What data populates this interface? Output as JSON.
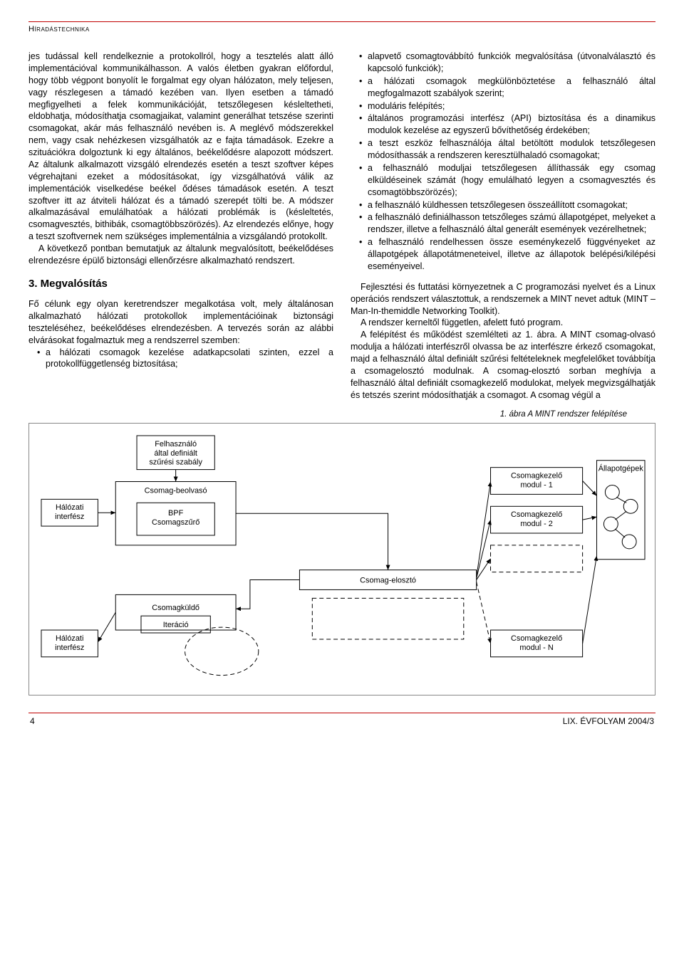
{
  "header": {
    "section": "Híradástechnika"
  },
  "left": {
    "p1": "jes tudással kell rendelkeznie a protokollról, hogy a tesztelés alatt álló implementációval kommunikálhasson. A valós életben gyakran előfordul, hogy több végpont bonyolít le forgalmat egy olyan hálózaton, mely teljesen, vagy részlegesen a támadó kezében van. Ilyen esetben a támadó megfigyelheti a felek kommunikációját, tetszőlegesen késleltetheti, eldobhatja, módosíthatja csomagjaikat, valamint generálhat tetszése szerinti csomagokat, akár más felhasználó nevében is. A meglévő módszerekkel nem, vagy csak nehézkesen vizsgálhatók az e fajta támadások. Ezekre a szituációkra dolgoztunk ki egy általános, beékelődésre alapozott módszert. Az általunk alkalmazott vizsgáló elrendezés esetén a teszt szoftver képes végrehajtani ezeket a módosításokat, így vizsgálhatóvá válik az implementációk viselkedése beékel ődéses támadások esetén. A teszt szoftver itt az átviteli hálózat és a támadó szerepét tölti be. A módszer alkalmazásával emulálhatóak a hálózati problémák is (késleltetés, csomagvesztés, bithibák, csomagtöbbszörözés). Az elrendezés előnye, hogy a teszt szoftvernek nem szükséges implementálnia a vizsgálandó protokollt.",
    "p2": "A következő pontban bemutatjuk az általunk megvalósított, beékelődéses elrendezésre épülő biztonsági ellenőrzésre alkalmazható rendszert.",
    "h1": "3. Megvalósítás",
    "p3": "Fő célunk egy olyan keretrendszer megalkotása volt, mely általánosan alkalmazható hálózati protokollok implementációinak biztonsági teszteléséhez, beékelődéses elrendezésben. A tervezés során az alábbi elvárásokat fogalmaztuk meg a rendszerrel szemben:",
    "li1": "a hálózati csomagok kezelése adatkapcsolati szinten, ezzel a protokollfüggetlenség biztosítása;"
  },
  "right": {
    "bullets": [
      "alapvető csomagtovábbító funkciók megvalósítása (útvonalválasztó és kapcsoló funkciók);",
      "a hálózati csomagok megkülönböztetése a felhasználó által megfogalmazott szabályok szerint;",
      "moduláris felépítés;",
      "általános programozási interfész (API) biztosítása és a dinamikus modulok kezelése az egyszerű bővíthetőség érdekében;",
      "a teszt eszköz felhasználója által betöltött modulok tetszőlegesen módosíthassák a rendszeren keresztülhaladó csomagokat;",
      "a felhasználó moduljai tetszőlegesen állíthassák egy csomag elküldéseinek számát (hogy emulálható legyen a csomagvesztés és csomagtöbbszörözés);",
      "a felhasználó küldhessen tetszőlegesen összeállított csomagokat;",
      "a felhasználó definiálhasson tetszőleges számú állapotgépet, melyeket a rendszer, illetve a felhasználó által generált események vezérelhetnek;",
      "a felhasználó rendelhessen össze eseménykezelő függvényeket az állapotgépek állapotátmeneteivel, illetve az állapotok belépési/kilépési eseményeivel."
    ],
    "p1": "Fejlesztési és futtatási környezetnek a C programozási nyelvet és a Linux operációs rendszert választottuk, a rendszernek a MINT nevet adtuk (MINT – Man-In-themiddle Networking Toolkit).",
    "p2": "A rendszer kerneltől független, afelett futó program.",
    "p3": "A felépítést és működést szemlélteti az 1. ábra. A MINT csomag-olvasó modulja a hálózati interfészről olvassa be az interfészre érkező csomagokat, majd a felhasználó által definiált szűrési feltételeknek megfelelőket továbbítja a csomagelosztó modulnak. A csomag-elosztó sorban meghívja a felhasználó által definiált csomagkezelő modulokat, melyek megvizsgálhatják és tetszés szerint módosíthatják a csomagot. A csomag végül a"
  },
  "figure": {
    "caption": "1. ábra  A MINT rendszer felépítése",
    "nodes": {
      "filter": "Felhasználó\náltal definiált\nszűrési szabály",
      "reader": "Csomag-beolvasó",
      "bpf": "BPF\nCsomagszűrő",
      "if_top": "Hálózati\ninterfész",
      "if_bottom": "Hálózati\ninterfész",
      "sender": "Csomagküldő",
      "iter": "Iteráció",
      "dist": "Csomag-elosztó",
      "k1": "Csomagkezelő\nmodul - 1",
      "k2": "Csomagkezelő\nmodul - 2",
      "kn": "Csomagkezelő\nmodul - N",
      "fsm": "Állapotgépek"
    },
    "style": {
      "stroke": "#000000",
      "dash": "6,4",
      "bg": "#ffffff",
      "font_size": 11
    }
  },
  "footer": {
    "page": "4",
    "issue": "LIX. ÉVFOLYAM 2004/3"
  }
}
